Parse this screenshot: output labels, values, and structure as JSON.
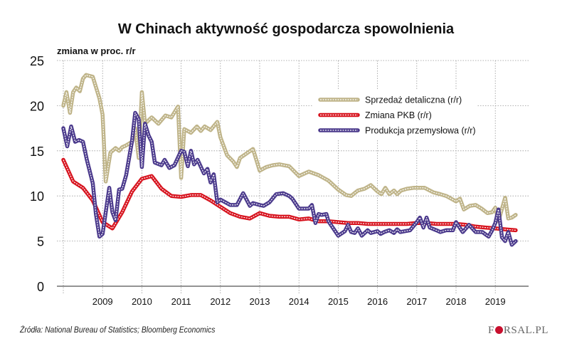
{
  "chart_data": {
    "type": "line",
    "title": "W Chinach aktywność gospodarcza spowolnienia",
    "ylabel": "zmiana w proc. r/r",
    "xlabel": "",
    "ylim": [
      0,
      25
    ],
    "yticks": [
      "0",
      "5",
      "10",
      "15",
      "20",
      "25"
    ],
    "xlim": [
      2008,
      2019.8
    ],
    "xticks": [
      "2009",
      "2010",
      "2011",
      "2012",
      "2013",
      "2014",
      "2015",
      "2016",
      "2017",
      "2018",
      "2019"
    ],
    "grid": true,
    "legend": "top-right",
    "series": [
      {
        "name": "Sprzedaż detaliczna (r/r)",
        "color": "#bfb489",
        "x": [
          2008.0,
          2008.08,
          2008.17,
          2008.25,
          2008.33,
          2008.42,
          2008.5,
          2008.58,
          2008.75,
          2008.92,
          2009.0,
          2009.08,
          2009.2,
          2009.33,
          2009.42,
          2009.5,
          2009.6,
          2009.75,
          2009.83,
          2009.92,
          2010.0,
          2010.08,
          2010.25,
          2010.42,
          2010.6,
          2010.75,
          2010.92,
          2011.0,
          2011.08,
          2011.25,
          2011.4,
          2011.5,
          2011.6,
          2011.75,
          2011.92,
          2012.0,
          2012.17,
          2012.33,
          2012.42,
          2012.5,
          2012.83,
          2013.0,
          2013.17,
          2013.33,
          2013.5,
          2013.75,
          2014.0,
          2014.25,
          2014.5,
          2014.75,
          2015.0,
          2015.2,
          2015.33,
          2015.5,
          2015.67,
          2015.83,
          2016.0,
          2016.1,
          2016.2,
          2016.3,
          2016.42,
          2016.5,
          2016.6,
          2016.75,
          2016.92,
          2017.2,
          2017.42,
          2017.6,
          2017.75,
          2018.0,
          2018.1,
          2018.2,
          2018.35,
          2018.5,
          2018.65,
          2018.8,
          2018.92,
          2019.0,
          2019.08,
          2019.17,
          2019.25,
          2019.33,
          2019.42,
          2019.52
        ],
        "y": [
          20,
          21.5,
          19.2,
          21.5,
          22,
          21.6,
          23,
          23.4,
          23.2,
          20.8,
          19,
          11.6,
          14.8,
          15.3,
          15,
          15.4,
          15.6,
          16,
          17.5,
          14.2,
          21.5,
          18,
          18.7,
          18,
          18.9,
          18.7,
          19.9,
          12,
          17.4,
          17,
          17.7,
          17.2,
          17.7,
          17.3,
          18.2,
          16.5,
          14.5,
          13.8,
          13.2,
          14.2,
          15.2,
          12.8,
          13.2,
          13.4,
          13.5,
          13.3,
          12.2,
          12.7,
          12.3,
          11.7,
          10.7,
          10.1,
          10.0,
          10.6,
          10.8,
          11.2,
          10.5,
          10.2,
          10.9,
          10.2,
          10.6,
          10.2,
          10.6,
          10.8,
          10.9,
          10.9,
          10.4,
          10.2,
          10,
          9.4,
          9.7,
          8.5,
          8.9,
          9.0,
          8.6,
          8.1,
          8.2,
          8.7,
          7.2,
          8.6,
          9.8,
          7.5,
          7.6,
          7.9
        ]
      },
      {
        "name": "Zmiana PKB (r/r)",
        "color": "#d7141f",
        "x": [
          2008.0,
          2008.25,
          2008.5,
          2008.75,
          2009.0,
          2009.25,
          2009.5,
          2009.75,
          2010.0,
          2010.25,
          2010.5,
          2010.75,
          2011.0,
          2011.25,
          2011.5,
          2011.75,
          2012.0,
          2012.25,
          2012.5,
          2012.75,
          2013.0,
          2013.25,
          2013.5,
          2013.75,
          2014.0,
          2014.25,
          2014.5,
          2014.75,
          2015.0,
          2015.25,
          2015.5,
          2015.75,
          2016.0,
          2016.25,
          2016.5,
          2016.75,
          2017.0,
          2017.25,
          2017.5,
          2017.75,
          2018.0,
          2018.25,
          2018.5,
          2018.75,
          2019.0,
          2019.25,
          2019.52
        ],
        "y": [
          14,
          11.6,
          10.9,
          9.5,
          7.1,
          6.4,
          8.2,
          10.5,
          11.9,
          12.2,
          10.8,
          10,
          9.9,
          10.1,
          10.1,
          9.5,
          8.8,
          8.1,
          7.7,
          7.5,
          8.1,
          7.8,
          7.7,
          7.7,
          7.4,
          7.5,
          7.2,
          7.2,
          7.1,
          7.0,
          7.0,
          6.9,
          6.9,
          6.9,
          6.9,
          6.9,
          7.0,
          7.0,
          6.9,
          6.9,
          6.9,
          6.8,
          6.6,
          6.5,
          6.4,
          6.3,
          6.2
        ]
      },
      {
        "name": "Produkcja przemysłowa (r/r)",
        "color": "#4b3a8c",
        "x": [
          2008.0,
          2008.1,
          2008.2,
          2008.3,
          2008.4,
          2008.5,
          2008.6,
          2008.75,
          2008.83,
          2008.92,
          2009.0,
          2009.17,
          2009.25,
          2009.33,
          2009.42,
          2009.5,
          2009.6,
          2009.75,
          2009.83,
          2009.92,
          2010.0,
          2010.08,
          2010.17,
          2010.25,
          2010.33,
          2010.5,
          2010.58,
          2010.7,
          2010.83,
          2011.0,
          2011.08,
          2011.17,
          2011.25,
          2011.33,
          2011.42,
          2011.58,
          2011.67,
          2011.75,
          2011.83,
          2011.92,
          2012.0,
          2012.25,
          2012.42,
          2012.58,
          2012.75,
          2012.83,
          2013.0,
          2013.1,
          2013.25,
          2013.42,
          2013.6,
          2013.75,
          2013.83,
          2014.0,
          2014.25,
          2014.33,
          2014.42,
          2014.5,
          2014.58,
          2014.7,
          2014.75,
          2015.0,
          2015.17,
          2015.25,
          2015.33,
          2015.42,
          2015.5,
          2015.6,
          2015.75,
          2015.83,
          2016.0,
          2016.08,
          2016.17,
          2016.3,
          2016.42,
          2016.5,
          2016.58,
          2016.7,
          2016.83,
          2017.0,
          2017.08,
          2017.17,
          2017.25,
          2017.33,
          2017.5,
          2017.6,
          2017.75,
          2017.92,
          2018.0,
          2018.17,
          2018.33,
          2018.5,
          2018.67,
          2018.83,
          2018.92,
          2019.0,
          2019.08,
          2019.17,
          2019.25,
          2019.33,
          2019.42,
          2019.52
        ],
        "y": [
          17.5,
          15.5,
          17.7,
          16,
          16.2,
          16,
          14,
          11.4,
          8,
          5.5,
          5.8,
          10.9,
          8.2,
          7.3,
          10.7,
          10.8,
          12.3,
          16.1,
          19.2,
          18.5,
          13.2,
          18,
          16.7,
          16,
          13.7,
          13.4,
          14,
          13.1,
          13.4,
          15,
          14.9,
          13.3,
          15,
          13.5,
          14,
          12.5,
          13,
          11.5,
          12.4,
          9.3,
          9.6,
          9.0,
          9.0,
          10.3,
          8.9,
          9.2,
          9.0,
          8.9,
          9.3,
          10.2,
          10.3,
          10,
          9.7,
          8.6,
          8.6,
          9.0,
          7.0,
          8.0,
          7.9,
          8.0,
          7.2,
          5.6,
          6.1,
          6.8,
          6.0,
          5.9,
          6.4,
          5.6,
          6.2,
          5.9,
          6.1,
          5.8,
          6.0,
          6.2,
          5.9,
          6.3,
          6.0,
          6.1,
          6.2,
          7.1,
          7.6,
          6.5,
          7.6,
          6.5,
          6.2,
          6.0,
          6.2,
          6.2,
          7.1,
          6.0,
          6.8,
          6.0,
          6.0,
          5.5,
          6.2,
          7.0,
          8.5,
          5.4,
          5.0,
          6.0,
          4.6,
          5.0
        ]
      }
    ]
  },
  "footer": {
    "source": "Źródła: National Bureau of Statistics; Bloomberg Economics",
    "logo": "FORSAL.PL"
  }
}
